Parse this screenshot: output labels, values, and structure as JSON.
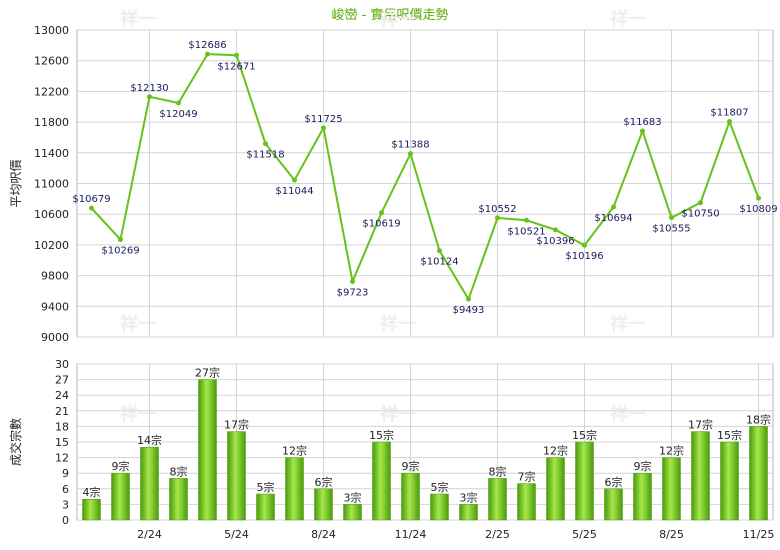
{
  "chart_data": [
    {
      "type": "line",
      "title": "峻巒 - 實用呎價走勢",
      "ylabel": "平均呎價",
      "ylim": [
        9000,
        13000
      ],
      "yticks": [
        9000,
        9400,
        9800,
        10200,
        10600,
        11000,
        11400,
        11800,
        12200,
        12600,
        13000
      ],
      "values": [
        10679,
        10269,
        12130,
        12049,
        12686,
        12671,
        11518,
        11044,
        11725,
        9723,
        10619,
        11388,
        10124,
        9493,
        10552,
        10521,
        10396,
        10196,
        10694,
        11683,
        10555,
        10750,
        11807,
        10809
      ],
      "point_labels": [
        "$10679",
        "$10269",
        "$12130",
        "$12049",
        "$12686",
        "$12671",
        "$11518",
        "$11044",
        "$11725",
        "$9723",
        "$10619",
        "$11388",
        "$10124",
        "$9493",
        "$10552",
        "$10521",
        "$10396",
        "$10196",
        "$10694",
        "$11683",
        "$10555",
        "$10750",
        "$11807",
        "$10809"
      ],
      "series_color": "#66c21a",
      "watermark": "祥一"
    },
    {
      "type": "bar",
      "ylabel": "成交宗數",
      "ylim": [
        0,
        30
      ],
      "yticks": [
        0,
        3,
        6,
        9,
        12,
        15,
        18,
        21,
        24,
        27,
        30
      ],
      "categories": [
        "",
        "",
        "2/24",
        "",
        "",
        "5/24",
        "",
        "",
        "8/24",
        "",
        "",
        "11/24",
        "",
        "",
        "2/25",
        "",
        "",
        "5/25",
        "",
        "",
        "8/25",
        "",
        "",
        "11/25"
      ],
      "values": [
        4,
        9,
        14,
        8,
        27,
        17,
        5,
        12,
        6,
        3,
        15,
        9,
        5,
        3,
        8,
        7,
        12,
        15,
        6,
        9,
        12,
        17,
        15,
        18
      ],
      "bar_labels": [
        "4宗",
        "9宗",
        "14宗",
        "8宗",
        "27宗",
        "17宗",
        "5宗",
        "12宗",
        "6宗",
        "3宗",
        "15宗",
        "9宗",
        "5宗",
        "3宗",
        "8宗",
        "7宗",
        "12宗",
        "15宗",
        "6宗",
        "9宗",
        "12宗",
        "17宗",
        "15宗",
        "18宗"
      ],
      "bar_color": "#66c21a",
      "watermark": "祥一"
    }
  ]
}
